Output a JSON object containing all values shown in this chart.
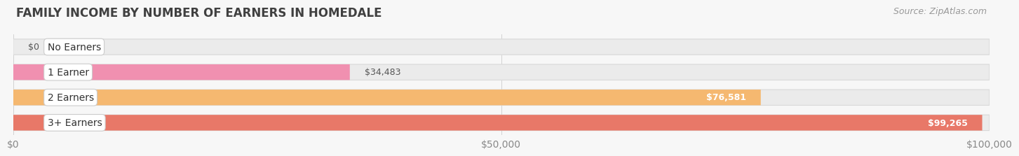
{
  "title": "FAMILY INCOME BY NUMBER OF EARNERS IN HOMEDALE",
  "source": "Source: ZipAtlas.com",
  "categories": [
    "No Earners",
    "1 Earner",
    "2 Earners",
    "3+ Earners"
  ],
  "values": [
    0,
    34483,
    76581,
    99265
  ],
  "bar_colors": [
    "#b0b4d8",
    "#f090b0",
    "#f5b870",
    "#e87868"
  ],
  "value_labels": [
    "$0",
    "$34,483",
    "$76,581",
    "$99,265"
  ],
  "value_inside": [
    false,
    false,
    true,
    true
  ],
  "xlim": [
    0,
    100000
  ],
  "xtick_values": [
    0,
    50000,
    100000
  ],
  "xtick_labels": [
    "$0",
    "$50,000",
    "$100,000"
  ],
  "bg_color": "#f7f7f7",
  "bar_bg_color": "#ebebeb",
  "bar_bg_edge_color": "#d8d8d8",
  "title_fontsize": 12,
  "source_fontsize": 9,
  "label_fontsize": 10,
  "value_fontsize": 9,
  "bar_height": 0.62,
  "figsize": [
    14.06,
    2.33
  ]
}
